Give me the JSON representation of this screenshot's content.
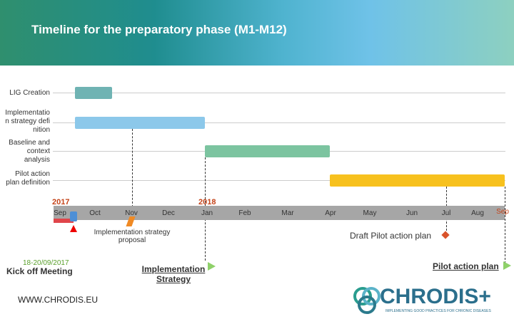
{
  "header": {
    "title": "Timeline for the preparatory phase (M1-M12)"
  },
  "tasks": [
    {
      "label": "LIG Creation"
    },
    {
      "label": "Implementation strategy definition"
    },
    {
      "label": "Baseline and context analysis"
    },
    {
      "label": "Pilot action plan definition"
    }
  ],
  "years": [
    "2017",
    "2018"
  ],
  "months": [
    "Sep",
    "Oct",
    "Nov",
    "Dec",
    "Jan",
    "Feb",
    "Mar",
    "Apr",
    "May",
    "Jun",
    "Jul",
    "Aug",
    "Sep"
  ],
  "milestones": {
    "strategy_proposal": "Implementation strategy proposal",
    "draft_pilot": "Draft Pilot action plan",
    "kickoff_date": "18-20/09/2017",
    "kickoff": "Kick off Meeting",
    "strategy": "Implementation Strategy",
    "pilot": "Pilot action plan"
  },
  "footer": {
    "url": "WWW.CHRODIS.EU",
    "logo": "CHRODIS+",
    "tagline": "IMPLEMENTING GOOD PRACTICES FOR CHRONIC DISEASES"
  }
}
